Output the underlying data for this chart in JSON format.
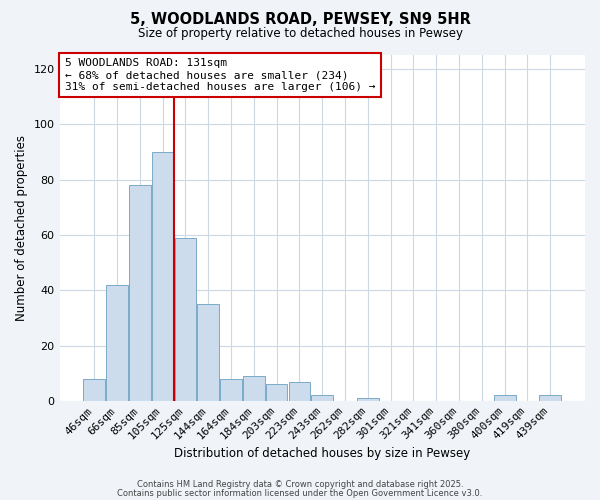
{
  "title": "5, WOODLANDS ROAD, PEWSEY, SN9 5HR",
  "subtitle": "Size of property relative to detached houses in Pewsey",
  "xlabel": "Distribution of detached houses by size in Pewsey",
  "ylabel": "Number of detached properties",
  "bar_labels": [
    "46sqm",
    "66sqm",
    "85sqm",
    "105sqm",
    "125sqm",
    "144sqm",
    "164sqm",
    "184sqm",
    "203sqm",
    "223sqm",
    "243sqm",
    "262sqm",
    "282sqm",
    "301sqm",
    "321sqm",
    "341sqm",
    "360sqm",
    "380sqm",
    "400sqm",
    "419sqm",
    "439sqm"
  ],
  "bar_values": [
    8,
    42,
    78,
    90,
    59,
    35,
    8,
    9,
    6,
    7,
    2,
    0,
    1,
    0,
    0,
    0,
    0,
    0,
    2,
    0,
    2
  ],
  "bar_color": "#cddcec",
  "bar_edge_color": "#7aaac8",
  "vline_x": 3.5,
  "vline_color": "#cc0000",
  "ylim": [
    0,
    125
  ],
  "yticks": [
    0,
    20,
    40,
    60,
    80,
    100,
    120
  ],
  "annotation_lines": [
    "5 WOODLANDS ROAD: 131sqm",
    "← 68% of detached houses are smaller (234)",
    "31% of semi-detached houses are larger (106) →"
  ],
  "footer_line1": "Contains HM Land Registry data © Crown copyright and database right 2025.",
  "footer_line2": "Contains public sector information licensed under the Open Government Licence v3.0.",
  "bg_color": "#f0f4f8",
  "plot_bg_color": "#ffffff",
  "grid_color": "#ccd8e4"
}
